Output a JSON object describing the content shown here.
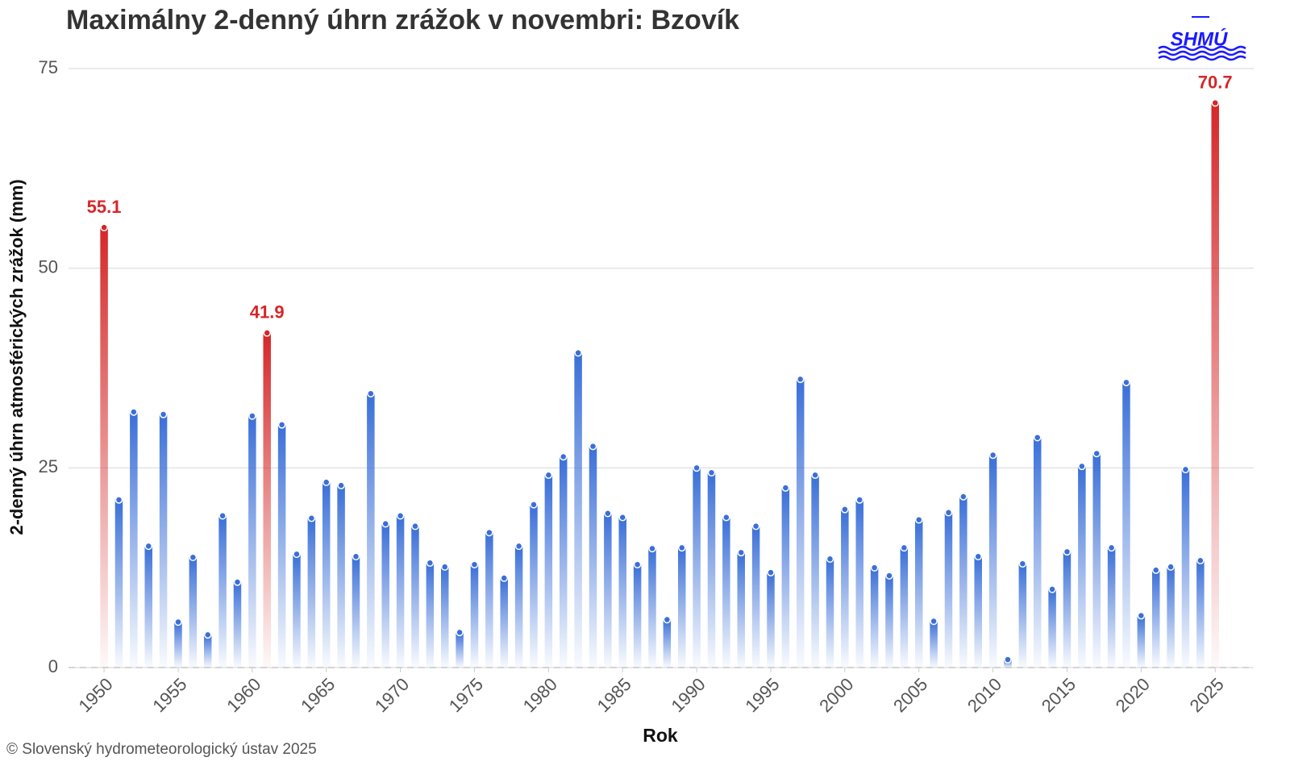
{
  "chart_data": {
    "type": "bar",
    "title": "Maximálny 2-denný úhrn zrážok v novembri: Bzovík",
    "y_label": "2-denný úhrn atmosférických zrážok (mm)",
    "x_label": "Rok",
    "footer": "© Slovenský hydrometeorologický ústav 2025",
    "logo": "SHMÚ",
    "x": [
      1950,
      1951,
      1952,
      1953,
      1954,
      1955,
      1956,
      1957,
      1958,
      1959,
      1960,
      1961,
      1962,
      1963,
      1964,
      1965,
      1966,
      1967,
      1968,
      1969,
      1970,
      1971,
      1972,
      1973,
      1974,
      1975,
      1976,
      1977,
      1978,
      1979,
      1980,
      1981,
      1982,
      1983,
      1984,
      1985,
      1986,
      1987,
      1988,
      1989,
      1990,
      1991,
      1992,
      1993,
      1994,
      1995,
      1996,
      1997,
      1998,
      1999,
      2000,
      2001,
      2002,
      2003,
      2004,
      2005,
      2006,
      2007,
      2008,
      2009,
      2010,
      2011,
      2012,
      2013,
      2014,
      2015,
      2016,
      2017,
      2018,
      2019,
      2020,
      2021,
      2022,
      2023,
      2024,
      2025
    ],
    "values": [
      55.1,
      21.0,
      32.0,
      15.2,
      31.7,
      5.7,
      13.8,
      4.1,
      19.0,
      10.7,
      31.5,
      41.9,
      30.4,
      14.2,
      18.7,
      23.2,
      22.8,
      13.9,
      34.3,
      18.0,
      19.0,
      17.7,
      13.1,
      12.6,
      4.4,
      12.9,
      16.9,
      11.2,
      15.2,
      20.4,
      24.1,
      26.4,
      39.4,
      27.7,
      19.3,
      18.8,
      12.9,
      14.9,
      6.0,
      15.0,
      25.0,
      24.4,
      18.8,
      14.4,
      17.7,
      11.9,
      22.5,
      36.1,
      24.1,
      13.6,
      19.8,
      21.0,
      12.5,
      11.5,
      15.0,
      18.5,
      5.8,
      19.4,
      21.4,
      13.9,
      26.6,
      1.0,
      13.0,
      28.8,
      9.8,
      14.5,
      25.2,
      26.8,
      15.0,
      35.7,
      6.5,
      12.2,
      12.6,
      24.8,
      13.4,
      70.7
    ],
    "colors": [
      "#d62728",
      "#3a6fd8",
      "#3a6fd8",
      "#3a6fd8",
      "#3a6fd8",
      "#3a6fd8",
      "#3a6fd8",
      "#3a6fd8",
      "#3a6fd8",
      "#3a6fd8",
      "#3a6fd8",
      "#d62728",
      "#3a6fd8",
      "#3a6fd8",
      "#3a6fd8",
      "#3a6fd8",
      "#3a6fd8",
      "#3a6fd8",
      "#3a6fd8",
      "#3a6fd8",
      "#3a6fd8",
      "#3a6fd8",
      "#3a6fd8",
      "#3a6fd8",
      "#3a6fd8",
      "#3a6fd8",
      "#3a6fd8",
      "#3a6fd8",
      "#3a6fd8",
      "#3a6fd8",
      "#3a6fd8",
      "#3a6fd8",
      "#3a6fd8",
      "#3a6fd8",
      "#3a6fd8",
      "#3a6fd8",
      "#3a6fd8",
      "#3a6fd8",
      "#3a6fd8",
      "#3a6fd8",
      "#3a6fd8",
      "#3a6fd8",
      "#3a6fd8",
      "#3a6fd8",
      "#3a6fd8",
      "#3a6fd8",
      "#3a6fd8",
      "#3a6fd8",
      "#3a6fd8",
      "#3a6fd8",
      "#3a6fd8",
      "#3a6fd8",
      "#3a6fd8",
      "#3a6fd8",
      "#3a6fd8",
      "#3a6fd8",
      "#3a6fd8",
      "#3a6fd8",
      "#3a6fd8",
      "#3a6fd8",
      "#3a6fd8",
      "#3a6fd8",
      "#3a6fd8",
      "#3a6fd8",
      "#3a6fd8",
      "#3a6fd8",
      "#3a6fd8",
      "#3a6fd8",
      "#3a6fd8",
      "#3a6fd8",
      "#3a6fd8",
      "#3a6fd8",
      "#3a6fd8",
      "#3a6fd8",
      "#3a6fd8",
      "#d62728"
    ],
    "highlight_color": "#d62728",
    "xlim": [
      1947.6,
      2027.6
    ],
    "xticks": [
      1950,
      1955,
      1960,
      1965,
      1970,
      1975,
      1980,
      1985,
      1990,
      1995,
      2000,
      2005,
      2010,
      2015,
      2020,
      2025
    ],
    "ylim": [
      0,
      75
    ],
    "yticks": [
      0,
      25,
      50,
      75
    ],
    "grid": true
  }
}
